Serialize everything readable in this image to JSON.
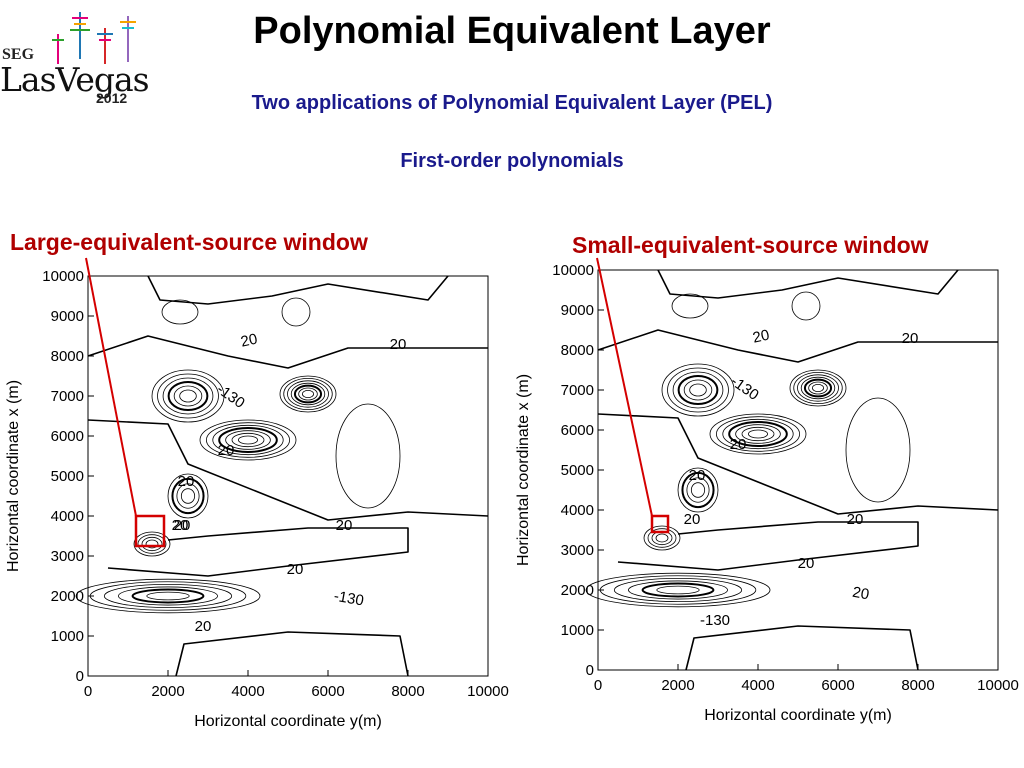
{
  "title": "Polynomial Equivalent Layer",
  "subtitle": "Two applications of  Polynomial Equivalent Layer (PEL)",
  "subtitle2": "First-order polynomials",
  "logo": {
    "seg": "SEG",
    "name": "LasVegas",
    "year": "2012"
  },
  "colors": {
    "title": "#000000",
    "subtitle": "#1a1a8c",
    "window_label": "#b00000",
    "window_box": "#d40000",
    "contour": "#000000"
  },
  "panels": [
    {
      "window_label": "Large-equivalent-source window",
      "xlabel": "Horizontal coordinate y(m)",
      "ylabel": "Horizontal coordinate x (m)",
      "xticks": [
        "0",
        "2000",
        "4000",
        "6000",
        "8000",
        "10000"
      ],
      "yticks": [
        "0",
        "1000",
        "2000",
        "3000",
        "4000",
        "5000",
        "6000",
        "7000",
        "8000",
        "9000",
        "10000"
      ],
      "contour_labels": [
        "20",
        "20",
        "-130",
        "20",
        "20",
        "20",
        "20",
        "20",
        "20",
        "-130",
        "20"
      ],
      "window_box": {
        "y_range": [
          1200,
          1900
        ],
        "x_range": [
          3250,
          4000
        ]
      }
    },
    {
      "window_label": "Small-equivalent-source window",
      "xlabel": "Horizontal coordinate y(m)",
      "ylabel": "Horizontal coordinate x (m)",
      "xticks": [
        "0",
        "2000",
        "4000",
        "6000",
        "8000",
        "10000"
      ],
      "yticks": [
        "0",
        "1000",
        "2000",
        "3000",
        "4000",
        "5000",
        "6000",
        "7000",
        "8000",
        "9000",
        "10000"
      ],
      "contour_labels": [
        "20",
        "20",
        "-130",
        "20",
        "20",
        "20",
        "20",
        "20",
        "-130",
        "20"
      ],
      "window_box": {
        "y_range": [
          1350,
          1750
        ],
        "x_range": [
          3450,
          3850
        ]
      }
    }
  ]
}
